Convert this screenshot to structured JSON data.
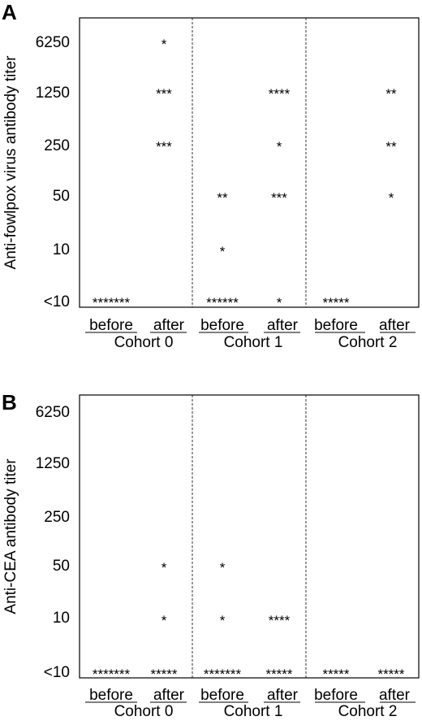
{
  "chart_data": [
    {
      "panel_label": "A",
      "type": "scatter",
      "ylabel": "Anti-fowlpox virus antibody titer",
      "y_ticks": [
        "6250",
        "1250",
        "250",
        "50",
        "10",
        "<10"
      ],
      "groups": [
        {
          "cohort": "Cohort 0",
          "before": "before",
          "after": "after"
        },
        {
          "cohort": "Cohort 1",
          "before": "before",
          "after": "after"
        },
        {
          "cohort": "Cohort 2",
          "before": "before",
          "after": "after"
        }
      ],
      "points": [
        {
          "group": 0,
          "col": "before",
          "titer": "<10",
          "marks": "*******"
        },
        {
          "group": 0,
          "col": "after",
          "titer": "6250",
          "marks": "*"
        },
        {
          "group": 0,
          "col": "after",
          "titer": "1250",
          "marks": "***"
        },
        {
          "group": 0,
          "col": "after",
          "titer": "250",
          "marks": "***"
        },
        {
          "group": 1,
          "col": "before",
          "titer": "50",
          "marks": "**"
        },
        {
          "group": 1,
          "col": "before",
          "titer": "10",
          "marks": "*"
        },
        {
          "group": 1,
          "col": "before",
          "titer": "<10",
          "marks": "******"
        },
        {
          "group": 1,
          "col": "after",
          "titer": "1250",
          "marks": "****"
        },
        {
          "group": 1,
          "col": "after",
          "titer": "250",
          "marks": "*"
        },
        {
          "group": 1,
          "col": "after",
          "titer": "50",
          "marks": "***"
        },
        {
          "group": 1,
          "col": "after",
          "titer": "<10",
          "marks": "*"
        },
        {
          "group": 2,
          "col": "before",
          "titer": "<10",
          "marks": "*****"
        },
        {
          "group": 2,
          "col": "after",
          "titer": "1250",
          "marks": "**"
        },
        {
          "group": 2,
          "col": "after",
          "titer": "250",
          "marks": "**"
        },
        {
          "group": 2,
          "col": "after",
          "titer": "50",
          "marks": "*"
        }
      ]
    },
    {
      "panel_label": "B",
      "type": "scatter",
      "ylabel": "Anti-CEA antibody titer",
      "y_ticks": [
        "6250",
        "1250",
        "250",
        "50",
        "10",
        "<10"
      ],
      "groups": [
        {
          "cohort": "Cohort 0",
          "before": "before",
          "after": "after"
        },
        {
          "cohort": "Cohort 1",
          "before": "before",
          "after": "after"
        },
        {
          "cohort": "Cohort 2",
          "before": "before",
          "after": "after"
        }
      ],
      "points": [
        {
          "group": 0,
          "col": "before",
          "titer": "<10",
          "marks": "*******"
        },
        {
          "group": 0,
          "col": "after",
          "titer": "50",
          "marks": "*"
        },
        {
          "group": 0,
          "col": "after",
          "titer": "10",
          "marks": "*"
        },
        {
          "group": 0,
          "col": "after",
          "titer": "<10",
          "marks": "*****"
        },
        {
          "group": 1,
          "col": "before",
          "titer": "50",
          "marks": "*"
        },
        {
          "group": 1,
          "col": "before",
          "titer": "10",
          "marks": "*"
        },
        {
          "group": 1,
          "col": "before",
          "titer": "<10",
          "marks": "*******"
        },
        {
          "group": 1,
          "col": "after",
          "titer": "10",
          "marks": "****"
        },
        {
          "group": 1,
          "col": "after",
          "titer": "<10",
          "marks": "*****"
        },
        {
          "group": 2,
          "col": "before",
          "titer": "<10",
          "marks": "*****"
        },
        {
          "group": 2,
          "col": "after",
          "titer": "<10",
          "marks": "*****"
        }
      ]
    }
  ]
}
